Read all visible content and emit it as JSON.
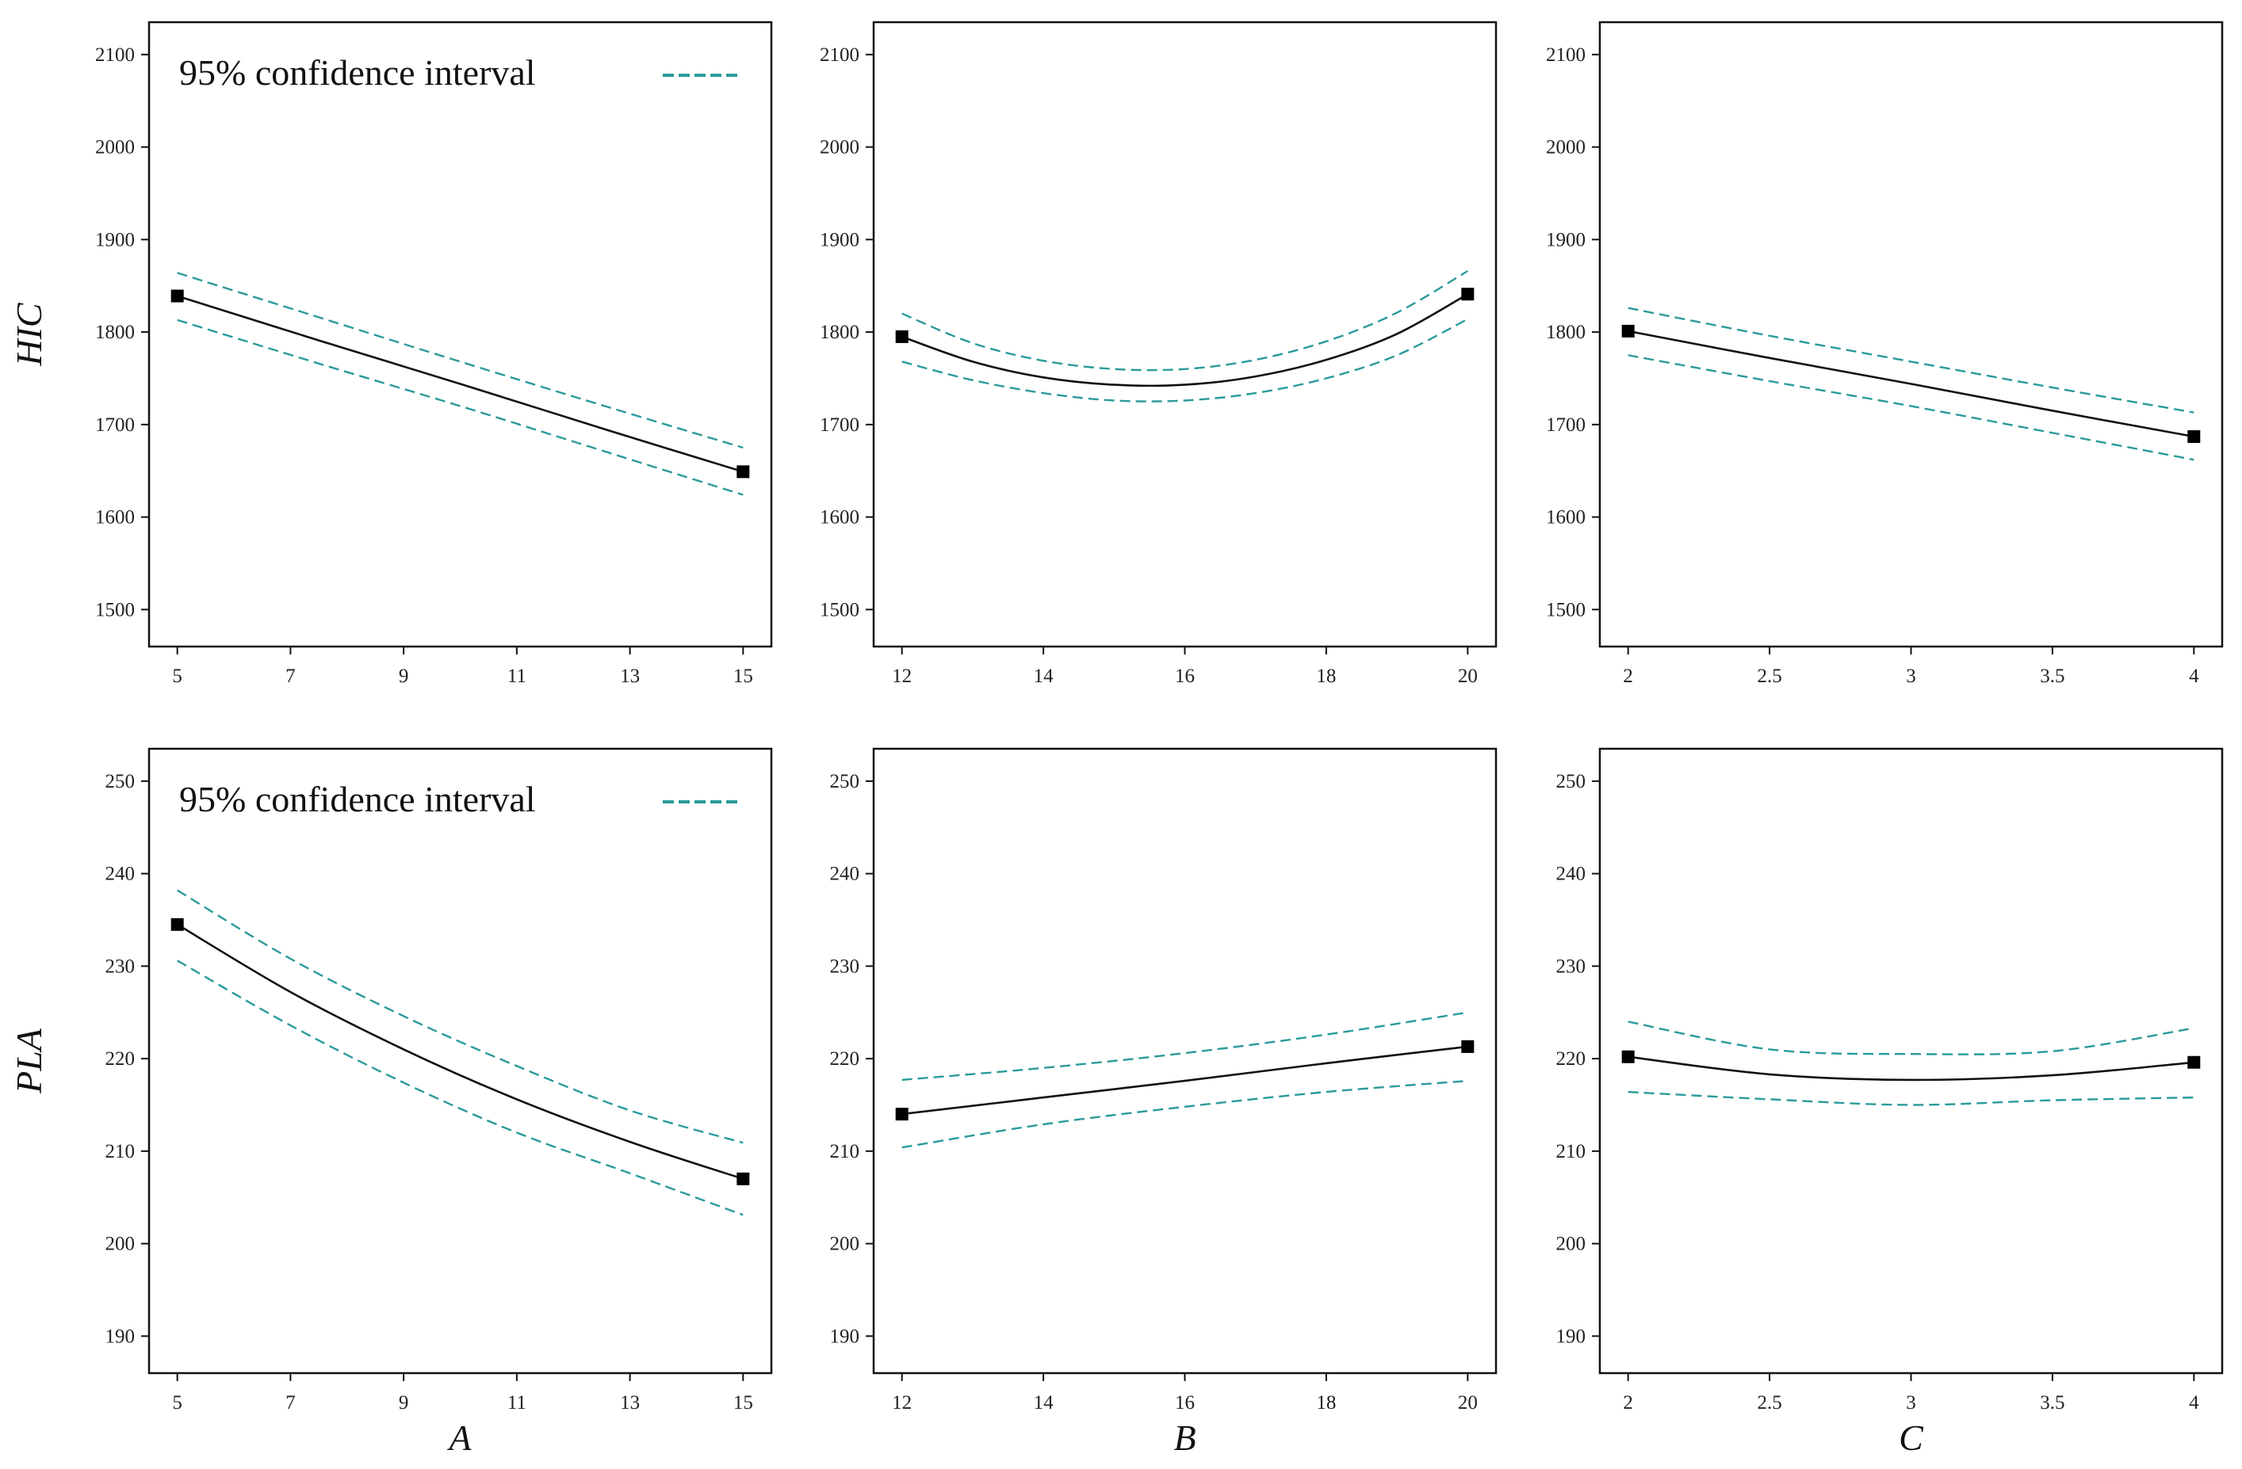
{
  "legend": {
    "label": "95%  confidence interval",
    "color": "#2a9a9a"
  },
  "colors": {
    "fit": "#111111",
    "ci": "#2a9a9a",
    "frame": "#111111"
  },
  "chart_data": [
    {
      "id": "hic-a",
      "type": "line",
      "xlabel": "",
      "ylabel": "HIC",
      "x_ticks": [
        5,
        7,
        9,
        11,
        13,
        15
      ],
      "xlim": [
        4.5,
        15.5
      ],
      "y_ticks": [
        1500,
        1600,
        1700,
        1800,
        1900,
        2000,
        2100
      ],
      "ylim": [
        1460,
        2135
      ],
      "show_legend": true,
      "x": [
        5,
        7.5,
        10,
        12.5,
        15
      ],
      "fit": [
        1839,
        1791,
        1744,
        1696,
        1649
      ],
      "upper": [
        1864,
        1816,
        1768,
        1721,
        1675
      ],
      "lower": [
        1813,
        1766,
        1720,
        1672,
        1624
      ],
      "endpoints": [
        [
          5,
          1839
        ],
        [
          15,
          1649
        ]
      ]
    },
    {
      "id": "hic-b",
      "type": "line",
      "xlabel": "",
      "ylabel": "",
      "x_ticks": [
        12,
        14,
        16,
        18,
        20
      ],
      "xlim": [
        11.6,
        20.4
      ],
      "y_ticks": [
        1500,
        1600,
        1700,
        1800,
        1900,
        2000,
        2100
      ],
      "ylim": [
        1460,
        2135
      ],
      "show_legend": false,
      "x": [
        12,
        13,
        14,
        15,
        16,
        17,
        18,
        19,
        20
      ],
      "fit": [
        1795,
        1768,
        1751,
        1743,
        1743,
        1752,
        1770,
        1798,
        1841
      ],
      "upper": [
        1820,
        1788,
        1769,
        1760,
        1760,
        1770,
        1790,
        1821,
        1866
      ],
      "lower": [
        1768,
        1748,
        1734,
        1726,
        1726,
        1734,
        1750,
        1775,
        1814
      ],
      "endpoints": [
        [
          12,
          1795
        ],
        [
          20,
          1841
        ]
      ]
    },
    {
      "id": "hic-c",
      "type": "line",
      "xlabel": "",
      "ylabel": "",
      "x_ticks": [
        2,
        2.5,
        3,
        3.5,
        4
      ],
      "xlim": [
        1.9,
        4.1
      ],
      "y_ticks": [
        1500,
        1600,
        1700,
        1800,
        1900,
        2000,
        2100
      ],
      "ylim": [
        1460,
        2135
      ],
      "show_legend": false,
      "x": [
        2,
        2.5,
        3,
        3.5,
        4
      ],
      "fit": [
        1801,
        1772,
        1744,
        1715,
        1687
      ],
      "upper": [
        1826,
        1796,
        1768,
        1740,
        1713
      ],
      "lower": [
        1775,
        1747,
        1720,
        1691,
        1662
      ],
      "endpoints": [
        [
          2,
          1801
        ],
        [
          4,
          1687
        ]
      ]
    },
    {
      "id": "pla-a",
      "type": "line",
      "xlabel": "A",
      "ylabel": "PLA",
      "x_ticks": [
        5,
        7,
        9,
        11,
        13,
        15
      ],
      "xlim": [
        4.5,
        15.5
      ],
      "y_ticks": [
        190,
        200,
        210,
        220,
        230,
        240,
        250
      ],
      "ylim": [
        186,
        253.5
      ],
      "show_legend": true,
      "x": [
        5,
        7,
        9,
        11,
        13,
        15
      ],
      "fit": [
        234.5,
        227.2,
        221.0,
        215.6,
        211.0,
        207.0
      ],
      "upper": [
        238.2,
        230.8,
        224.6,
        219.2,
        214.4,
        210.9
      ],
      "lower": [
        230.6,
        223.6,
        217.4,
        212.0,
        207.6,
        203.1
      ],
      "endpoints": [
        [
          5,
          234.5
        ],
        [
          15,
          207.0
        ]
      ]
    },
    {
      "id": "pla-b",
      "type": "line",
      "xlabel": "B",
      "ylabel": "",
      "x_ticks": [
        12,
        14,
        16,
        18,
        20
      ],
      "xlim": [
        11.6,
        20.4
      ],
      "y_ticks": [
        190,
        200,
        210,
        220,
        230,
        240,
        250
      ],
      "ylim": [
        186,
        253.5
      ],
      "show_legend": false,
      "x": [
        12,
        14,
        16,
        18,
        20
      ],
      "fit": [
        214.0,
        215.8,
        217.6,
        219.5,
        221.3
      ],
      "upper": [
        217.7,
        219.0,
        220.6,
        222.6,
        225.0
      ],
      "lower": [
        210.4,
        212.9,
        214.8,
        216.4,
        217.6
      ],
      "endpoints": [
        [
          12,
          214.0
        ],
        [
          20,
          221.3
        ]
      ]
    },
    {
      "id": "pla-c",
      "type": "line",
      "xlabel": "C",
      "ylabel": "",
      "x_ticks": [
        2,
        2.5,
        3,
        3.5,
        4
      ],
      "xlim": [
        1.9,
        4.1
      ],
      "y_ticks": [
        190,
        200,
        210,
        220,
        230,
        240,
        250
      ],
      "ylim": [
        186,
        253.5
      ],
      "show_legend": false,
      "x": [
        2,
        2.5,
        3,
        3.5,
        4
      ],
      "fit": [
        220.2,
        218.3,
        217.7,
        218.2,
        219.6
      ],
      "upper": [
        224.0,
        221.0,
        220.5,
        220.8,
        223.3
      ],
      "lower": [
        216.4,
        215.6,
        215.0,
        215.5,
        215.8
      ],
      "endpoints": [
        [
          2,
          220.2
        ],
        [
          4,
          219.6
        ]
      ]
    }
  ]
}
